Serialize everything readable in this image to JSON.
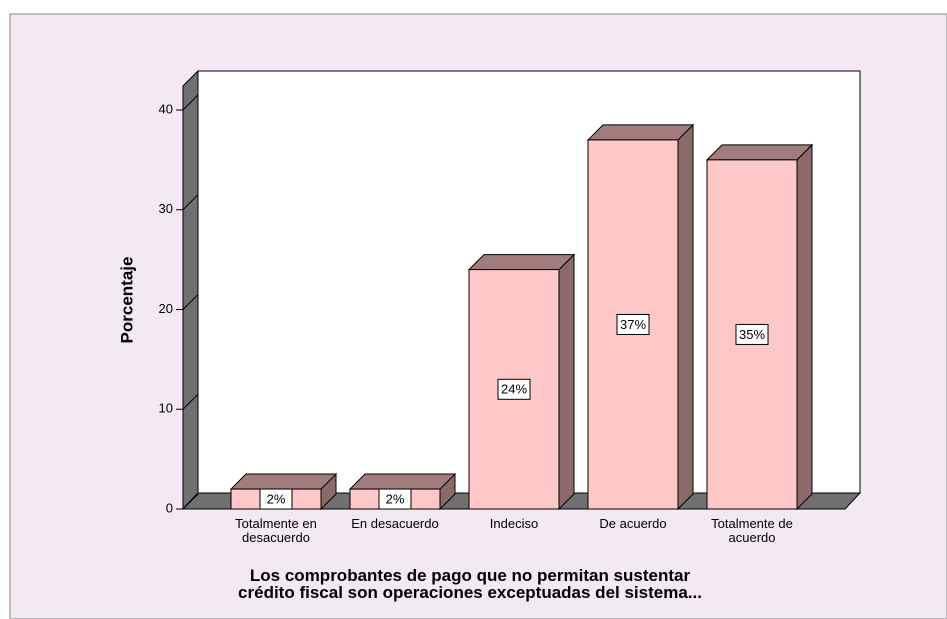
{
  "chart_data": {
    "type": "bar3d",
    "categories": [
      "Totalmente en desacuerdo",
      "En desacuerdo",
      "Indeciso",
      "De acuerdo",
      "Totalmente de acuerdo"
    ],
    "values": [
      2,
      2,
      24,
      37,
      35
    ],
    "value_labels": [
      "2%",
      "2%",
      "24%",
      "37%",
      "35%"
    ],
    "color": "#ffc8c8",
    "ylabel": "Porcentaje",
    "xlabel": [
      "Los comprobantes de pago que no permitan sustentar",
      "crédito fiscal son operaciones exceptuadas del sistema..."
    ],
    "ylim": [
      0,
      40
    ],
    "yticks": [
      0,
      10,
      20,
      30,
      40
    ]
  }
}
